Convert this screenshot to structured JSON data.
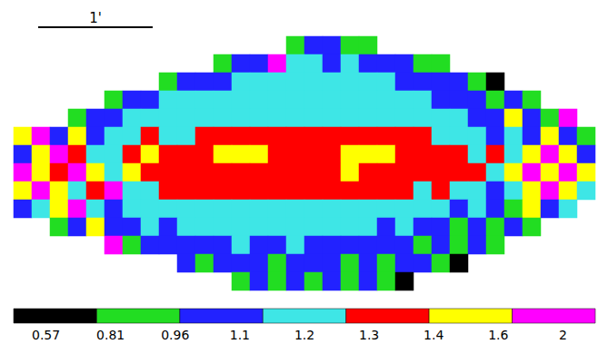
{
  "chart_data": {
    "type": "heatmap",
    "tick_labels": false,
    "annotations": [
      "1'"
    ],
    "values": [
      [
        null,
        null,
        null,
        null,
        null,
        null,
        null,
        null,
        null,
        null,
        null,
        null,
        null,
        null,
        null,
        0.7,
        0.9,
        0.9,
        0.7,
        0.7,
        null,
        null,
        null,
        null,
        null,
        null,
        null,
        null,
        null,
        null,
        null,
        null
      ],
      [
        null,
        null,
        null,
        null,
        null,
        null,
        null,
        null,
        null,
        null,
        null,
        0.7,
        0.9,
        0.9,
        2,
        1.1,
        1.1,
        0.9,
        1.1,
        0.9,
        0.9,
        0.9,
        0.7,
        0.7,
        null,
        null,
        null,
        null,
        null,
        null,
        null,
        null
      ],
      [
        null,
        null,
        null,
        null,
        null,
        null,
        null,
        null,
        0.7,
        0.9,
        0.9,
        0.9,
        1.1,
        1.1,
        1.1,
        1.1,
        1.1,
        1.1,
        1.1,
        1.1,
        1.1,
        0.9,
        0.9,
        0.9,
        0.9,
        0.7,
        0.5,
        null,
        null,
        null,
        null,
        null
      ],
      [
        null,
        null,
        null,
        null,
        null,
        0.7,
        0.9,
        0.9,
        1.1,
        1.1,
        1.1,
        1.1,
        1.1,
        1.1,
        1.1,
        1.1,
        1.1,
        1.1,
        1.1,
        1.1,
        1.1,
        1.1,
        1.1,
        0.9,
        0.9,
        0.9,
        0.7,
        0.9,
        0.7,
        null,
        null,
        null
      ],
      [
        null,
        null,
        null,
        0.7,
        0.9,
        0.9,
        1.1,
        1.1,
        1.1,
        1.1,
        1.1,
        1.1,
        1.1,
        1.1,
        1.1,
        1.1,
        1.1,
        1.1,
        1.1,
        1.1,
        1.1,
        1.1,
        1.1,
        1.1,
        1.1,
        0.9,
        0.9,
        1.5,
        0.9,
        0.7,
        2,
        null
      ],
      [
        1.5,
        2,
        0.9,
        1.5,
        0.9,
        1.1,
        1.1,
        1.3,
        1.1,
        1.1,
        1.3,
        1.3,
        1.3,
        1.3,
        1.3,
        1.3,
        1.3,
        1.3,
        1.3,
        1.3,
        1.3,
        1.3,
        1.3,
        1.1,
        1.1,
        1.1,
        0.9,
        1.1,
        0.9,
        1.5,
        0.9,
        0.7
      ],
      [
        0.9,
        1.5,
        2,
        1.3,
        1.1,
        1.1,
        1.3,
        1.5,
        1.3,
        1.3,
        1.3,
        1.5,
        1.5,
        1.5,
        1.3,
        1.3,
        1.3,
        1.3,
        1.5,
        1.5,
        1.5,
        1.3,
        1.3,
        1.3,
        1.3,
        1.1,
        1.3,
        1.1,
        1.5,
        2,
        1.5,
        0.9
      ],
      [
        2,
        1.5,
        1.3,
        2,
        1.5,
        1.1,
        1.5,
        1.3,
        1.3,
        1.3,
        1.3,
        1.3,
        1.3,
        1.3,
        1.3,
        1.3,
        1.3,
        1.3,
        1.5,
        1.3,
        1.3,
        1.3,
        1.3,
        1.3,
        1.3,
        1.3,
        1.1,
        1.5,
        2,
        1.5,
        2,
        1.5
      ],
      [
        1.5,
        2,
        1.5,
        1.1,
        1.3,
        2,
        1.1,
        1.1,
        1.3,
        1.3,
        1.3,
        1.3,
        1.3,
        1.3,
        1.3,
        1.3,
        1.3,
        1.3,
        1.3,
        1.3,
        1.3,
        1.3,
        1.1,
        1.3,
        1.1,
        1.1,
        0.9,
        1.1,
        1.5,
        2,
        1.5,
        1.1
      ],
      [
        0.9,
        1.1,
        1.5,
        2,
        1.1,
        0.9,
        1.1,
        1.1,
        1.1,
        1.1,
        1.1,
        1.1,
        1.1,
        1.1,
        1.1,
        1.1,
        1.1,
        1.1,
        1.1,
        1.1,
        1.1,
        1.1,
        1.1,
        1.1,
        0.9,
        1.1,
        0.9,
        0.7,
        1.5,
        0.9,
        1.1,
        null
      ],
      [
        null,
        null,
        0.7,
        0.9,
        1.5,
        0.9,
        0.9,
        1.1,
        0.9,
        1.1,
        1.1,
        1.1,
        1.1,
        1.1,
        1.1,
        1.1,
        1.1,
        1.1,
        1.1,
        1.1,
        0.9,
        1.1,
        0.9,
        0.9,
        0.7,
        0.9,
        0.7,
        0.9,
        0.7,
        null,
        null,
        null
      ],
      [
        null,
        null,
        null,
        null,
        null,
        2,
        0.7,
        0.9,
        0.9,
        0.9,
        0.9,
        0.9,
        1.1,
        0.9,
        0.9,
        1.1,
        0.9,
        0.9,
        0.9,
        0.9,
        0.9,
        0.9,
        0.7,
        0.9,
        0.7,
        0.9,
        0.7,
        null,
        null,
        null,
        null,
        null
      ],
      [
        null,
        null,
        null,
        null,
        null,
        null,
        null,
        null,
        null,
        0.9,
        0.7,
        0.9,
        0.9,
        0.9,
        0.7,
        0.9,
        0.9,
        0.9,
        0.7,
        0.9,
        0.7,
        0.9,
        0.9,
        0.7,
        0.5,
        null,
        null,
        null,
        null,
        null,
        null,
        null
      ],
      [
        null,
        null,
        null,
        null,
        null,
        null,
        null,
        null,
        null,
        null,
        null,
        null,
        0.7,
        0.9,
        0.7,
        0.9,
        0.7,
        0.9,
        0.7,
        0.9,
        0.7,
        0.5,
        null,
        null,
        null,
        null,
        null,
        null,
        null,
        null,
        null,
        null
      ]
    ],
    "colorbar": {
      "pieces": [
        {
          "max": 0.57,
          "color": "#000000"
        },
        {
          "min": 0.57,
          "max": 0.81,
          "color": "#22dd22"
        },
        {
          "min": 0.81,
          "max": 0.96,
          "color": "#2222ff"
        },
        {
          "min": 0.96,
          "max": 1.2,
          "color": "#3ee6e6"
        },
        {
          "min": 1.2,
          "max": 1.4,
          "color": "#ff0000"
        },
        {
          "min": 1.4,
          "max": 1.6,
          "color": "#ffff00"
        },
        {
          "min": 1.6,
          "color": "#ff00ff"
        }
      ],
      "ticks": [
        0.57,
        0.81,
        0.96,
        1.1,
        1.2,
        1.3,
        1.4,
        1.6,
        2
      ]
    }
  }
}
